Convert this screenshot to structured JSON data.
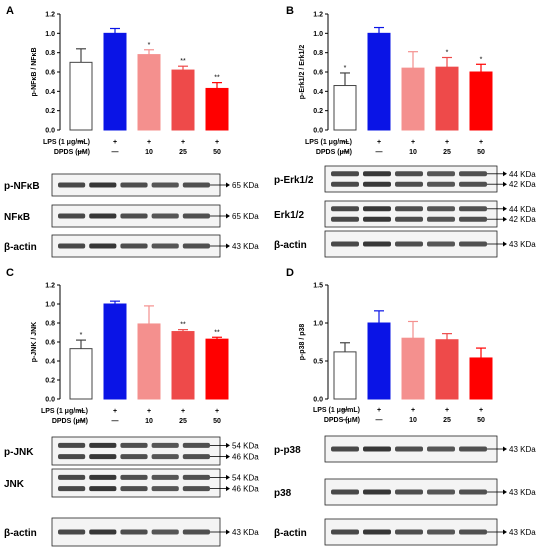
{
  "figure": {
    "panel_letters": [
      "A",
      "B",
      "C",
      "D"
    ]
  },
  "treatment_table": {
    "lps_label": "LPS (1 μg/mL)",
    "dpds_label": "DPDS (μM)",
    "lps_marks": [
      "—",
      "+",
      "+",
      "+",
      "+"
    ],
    "dpds_marks": [
      "—",
      "—",
      "10",
      "25",
      "50"
    ]
  },
  "colors": [
    "#ffffff",
    "#0a14e6",
    "#f4908e",
    "#ee4a4a",
    "#ff0000"
  ],
  "chart_data": [
    {
      "panel": "A",
      "type": "bar",
      "ylabel": "p-NFκB / NFκB",
      "ylim": [
        0,
        1.2
      ],
      "yticks": [
        "0.0",
        "0.2",
        "0.4",
        "0.6",
        "0.8",
        "1.0",
        "1.2"
      ],
      "values": [
        0.7,
        1.0,
        0.78,
        0.62,
        0.43
      ],
      "errors": [
        0.14,
        0.05,
        0.05,
        0.04,
        0.06
      ],
      "significance": [
        "",
        "",
        "*",
        "**",
        "**"
      ]
    },
    {
      "panel": "B",
      "type": "bar",
      "ylabel": "p-Erk1/2 / Erk1/2",
      "ylim": [
        0,
        1.2
      ],
      "yticks": [
        "0.0",
        "0.2",
        "0.4",
        "0.6",
        "0.8",
        "1.0",
        "1.2"
      ],
      "values": [
        0.46,
        1.0,
        0.64,
        0.65,
        0.6
      ],
      "errors": [
        0.13,
        0.06,
        0.17,
        0.1,
        0.08
      ],
      "significance": [
        "*",
        "",
        "",
        "*",
        "*"
      ]
    },
    {
      "panel": "C",
      "type": "bar",
      "ylabel": "p-JNK / JNK",
      "ylim": [
        0,
        1.2
      ],
      "yticks": [
        "0.0",
        "0.2",
        "0.4",
        "0.6",
        "0.8",
        "1.0",
        "1.2"
      ],
      "values": [
        0.53,
        1.0,
        0.79,
        0.71,
        0.63
      ],
      "errors": [
        0.09,
        0.03,
        0.19,
        0.02,
        0.02
      ],
      "significance": [
        "*",
        "",
        "",
        "**",
        "**"
      ]
    },
    {
      "panel": "D",
      "type": "bar",
      "ylabel": "p-p38 / p38",
      "ylim": [
        0,
        1.5
      ],
      "yticks": [
        "0.0",
        "0.5",
        "1.0",
        "1.5"
      ],
      "values": [
        0.62,
        1.0,
        0.8,
        0.78,
        0.54
      ],
      "errors": [
        0.12,
        0.16,
        0.22,
        0.08,
        0.13
      ],
      "significance": [
        "",
        "",
        "",
        "",
        ""
      ]
    }
  ],
  "blots": {
    "A": [
      {
        "label": "p-NFκB",
        "sizes": [
          "65 KDa"
        ]
      },
      {
        "label": "NFκB",
        "sizes": [
          "65 KDa"
        ]
      },
      {
        "label": "β-actin",
        "sizes": [
          "43 KDa"
        ]
      }
    ],
    "B": [
      {
        "label": "p-Erk1/2",
        "sizes": [
          "44 KDa",
          "42 KDa"
        ]
      },
      {
        "label": "Erk1/2",
        "sizes": [
          "44 KDa",
          "42 KDa"
        ]
      },
      {
        "label": "β-actin",
        "sizes": [
          "43 KDa"
        ]
      }
    ],
    "C": [
      {
        "label": "p-JNK",
        "sizes": [
          "54 KDa",
          "46 KDa"
        ]
      },
      {
        "label": "JNK",
        "sizes": [
          "54 KDa",
          "46 KDa"
        ]
      },
      {
        "label": "β-actin",
        "sizes": [
          "43 KDa"
        ]
      }
    ],
    "D": [
      {
        "label": "p-p38",
        "sizes": [
          "43 KDa"
        ]
      },
      {
        "label": "p38",
        "sizes": [
          "43 KDa"
        ]
      },
      {
        "label": "β-actin",
        "sizes": [
          "43 KDa"
        ]
      }
    ]
  }
}
